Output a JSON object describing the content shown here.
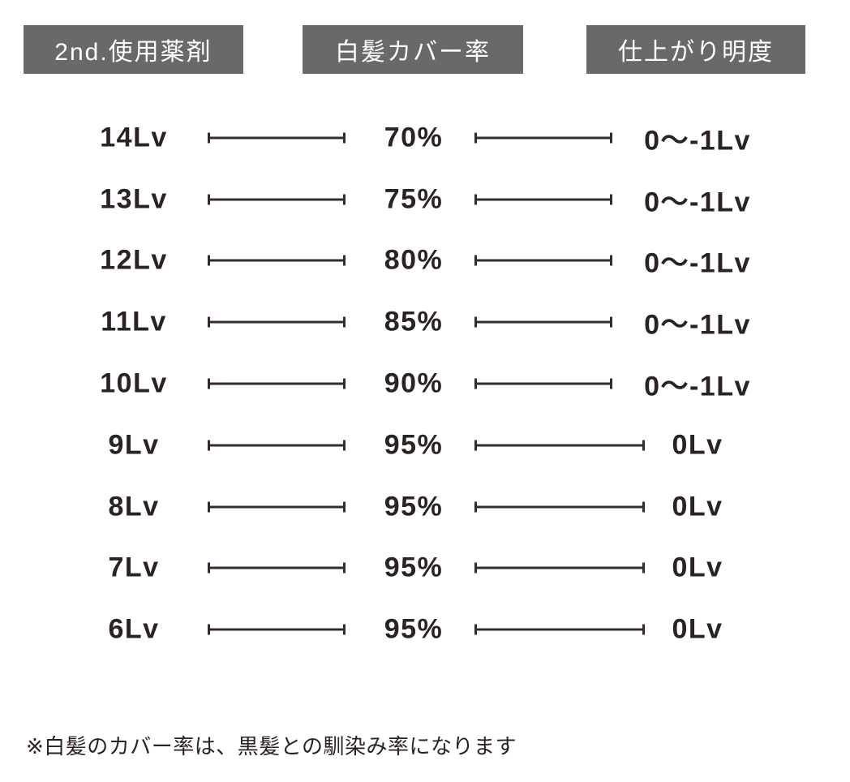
{
  "header": {
    "columns": [
      {
        "label": "2nd.使用薬剤"
      },
      {
        "label": "白髪カバー率"
      },
      {
        "label": "仕上がり明度"
      }
    ]
  },
  "table": {
    "rows": [
      {
        "level": "14Lv",
        "coverage": "70%",
        "brightness": "0〜-1Lv"
      },
      {
        "level": "13Lv",
        "coverage": "75%",
        "brightness": "0〜-1Lv"
      },
      {
        "level": "12Lv",
        "coverage": "80%",
        "brightness": "0〜-1Lv"
      },
      {
        "level": "11Lv",
        "coverage": "85%",
        "brightness": "0〜-1Lv"
      },
      {
        "level": "10Lv",
        "coverage": "90%",
        "brightness": "0〜-1Lv"
      },
      {
        "level": "9Lv",
        "coverage": "95%",
        "brightness": "0Lv"
      },
      {
        "level": "8Lv",
        "coverage": "95%",
        "brightness": "0Lv"
      },
      {
        "level": "7Lv",
        "coverage": "95%",
        "brightness": "0Lv"
      },
      {
        "level": "6Lv",
        "coverage": "95%",
        "brightness": "0Lv"
      }
    ]
  },
  "footnote": "※白髪のカバー率は、黒髪との馴染み率になります",
  "colors": {
    "ink": "#2b2321",
    "line": "#352c2a",
    "header_bg": "#696969",
    "header_text": "#ffffff",
    "page_bg": "#ffffff"
  },
  "chart_data": {
    "type": "table",
    "columns": [
      "2nd.使用薬剤",
      "白髪カバー率",
      "仕上がり明度"
    ],
    "rows": [
      [
        "14Lv",
        "70%",
        "0〜-1Lv"
      ],
      [
        "13Lv",
        "75%",
        "0〜-1Lv"
      ],
      [
        "12Lv",
        "80%",
        "0〜-1Lv"
      ],
      [
        "11Lv",
        "85%",
        "0〜-1Lv"
      ],
      [
        "10Lv",
        "90%",
        "0〜-1Lv"
      ],
      [
        "9Lv",
        "95%",
        "0Lv"
      ],
      [
        "8Lv",
        "95%",
        "0Lv"
      ],
      [
        "7Lv",
        "95%",
        "0Lv"
      ],
      [
        "6Lv",
        "95%",
        "0Lv"
      ]
    ],
    "coverage_values_percent": [
      70,
      75,
      80,
      85,
      90,
      95,
      95,
      95,
      95
    ],
    "level_values": [
      14,
      13,
      12,
      11,
      10,
      9,
      8,
      7,
      6
    ],
    "note": "※白髪のカバー率は、黒髪との馴染み率になります"
  }
}
